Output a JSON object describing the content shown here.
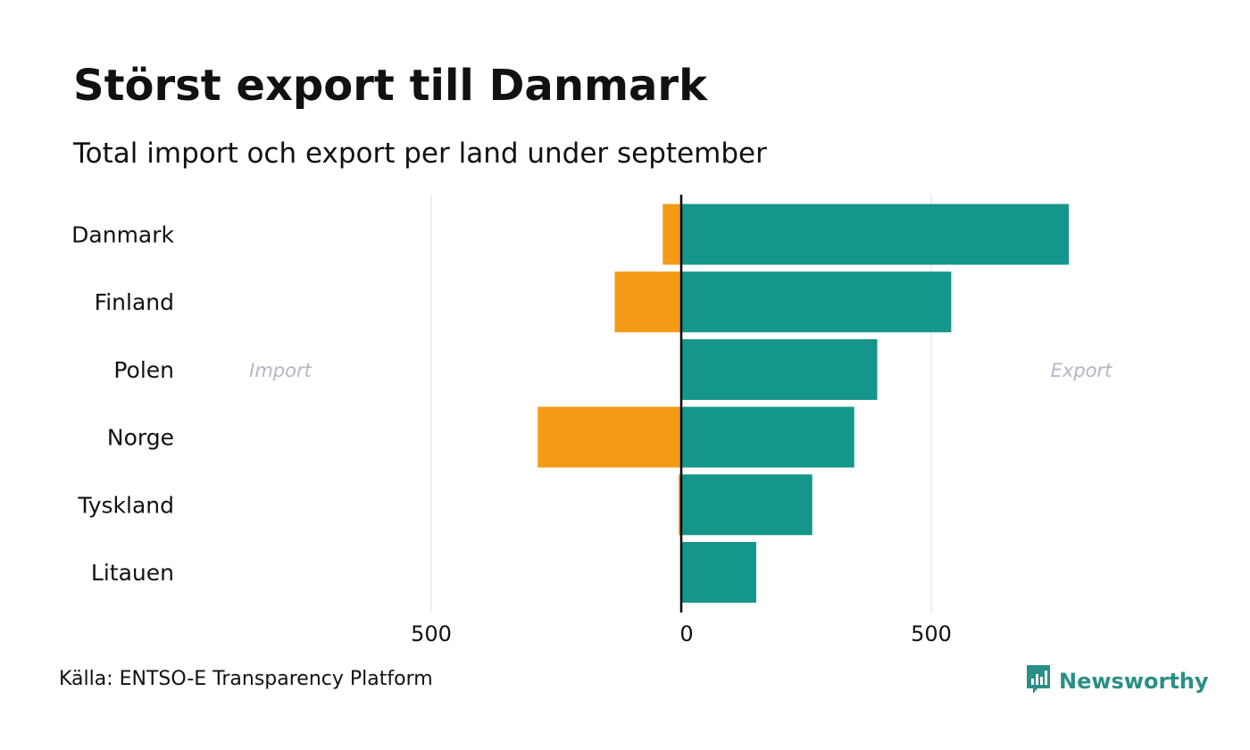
{
  "header": {
    "title": "Störst export till Danmark",
    "subtitle": "Total import och export per land under september"
  },
  "footer": {
    "source": "Källa: ENTSO-E Transparency Platform",
    "brand": "Newsworthy",
    "brand_icon": "bar-chart-speech-bubble-icon"
  },
  "colors": {
    "import": "#F49A17",
    "export": "#15968A",
    "grid": "#e8e8e8",
    "zero_line": "#000000",
    "side_label": "#b5b5c3",
    "brand": "#2a8f86"
  },
  "chart_data": {
    "type": "bar",
    "orientation": "horizontal-diverging",
    "categories": [
      "Danmark",
      "Finland",
      "Polen",
      "Norge",
      "Tyskland",
      "Litauen"
    ],
    "series": [
      {
        "name": "Import",
        "values": [
          37,
          133,
          0,
          287,
          5,
          0
        ]
      },
      {
        "name": "Export",
        "values": [
          775,
          540,
          392,
          346,
          262,
          150
        ]
      }
    ],
    "side_labels": {
      "left": "Import",
      "right": "Export"
    },
    "xlim": [
      -500,
      1000
    ],
    "xticks": [
      {
        "value": -500,
        "label": "500"
      },
      {
        "value": 0,
        "label": "0"
      },
      {
        "value": 500,
        "label": "500"
      }
    ],
    "grid": true,
    "legend": "none"
  }
}
